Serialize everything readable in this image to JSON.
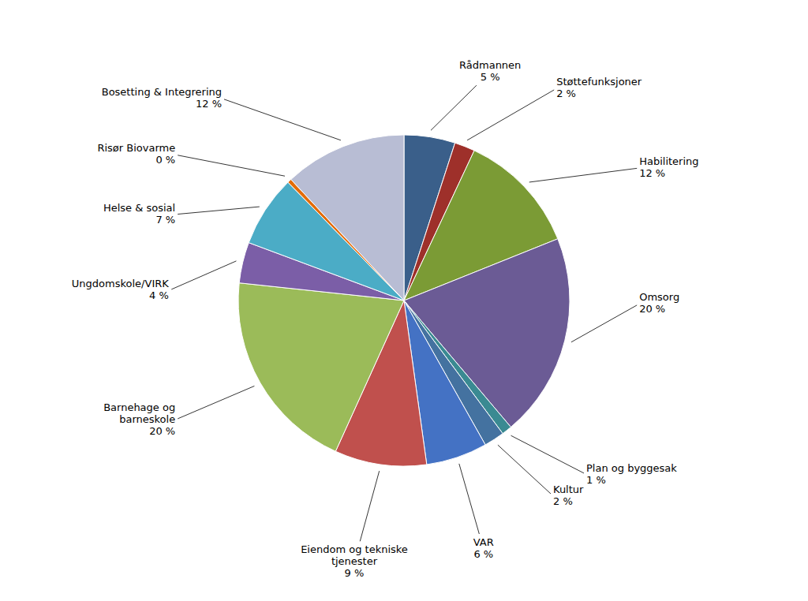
{
  "chart_data": {
    "type": "pie",
    "categories": [
      "Rådmannen",
      "Støttefunksjoner",
      "Habilitering",
      "Omsorg",
      "Plan og byggesak",
      "Kultur",
      "VAR",
      "Eiendom og tekniske\ntjenester",
      "Barnehage og\nbarneskole",
      "Ungdomskole/VIRK",
      "Helse & sosial",
      "Risør Biovarme",
      "Bosetting & Integrering"
    ],
    "values": [
      5,
      2,
      12,
      20,
      1,
      2,
      6,
      9,
      20,
      4,
      7,
      0.4,
      12
    ],
    "value_labels": [
      "5 %",
      "2 %",
      "12 %",
      "20 %",
      "1 %",
      "2 %",
      "6 %",
      "9 %",
      "20 %",
      "4 %",
      "7 %",
      "0 %",
      "12 %"
    ],
    "colors": [
      "#3A5F8A",
      "#9E302A",
      "#7B9B35",
      "#6B5B95",
      "#3A8A92",
      "#4472A0",
      "#4472C4",
      "#C0504D",
      "#9BBB59",
      "#7B5EA7",
      "#4BACC6",
      "#E36C09",
      "#B8BDD4"
    ],
    "data_labels": true
  }
}
